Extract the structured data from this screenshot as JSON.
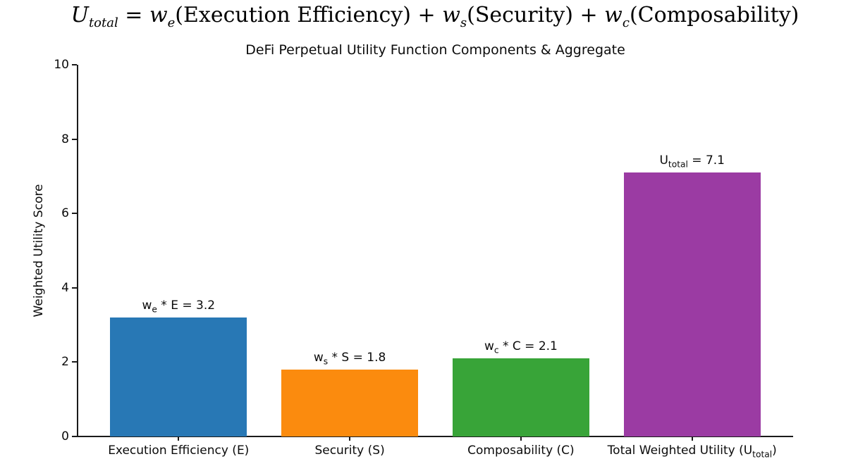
{
  "figure": {
    "background": "#ffffff",
    "text_color": "#111111"
  },
  "formula": {
    "plain": "U_total = w_e(Execution Efficiency) + w_s(Security) + w_c(Composability)",
    "segments": [
      {
        "t": "U",
        "i": true
      },
      {
        "t": "total",
        "i": true,
        "s": true
      },
      {
        "t": " = "
      },
      {
        "t": "w",
        "i": true
      },
      {
        "t": "e",
        "i": true,
        "s": true
      },
      {
        "t": "(Execution Efficiency) + "
      },
      {
        "t": "w",
        "i": true
      },
      {
        "t": "s",
        "i": true,
        "s": true
      },
      {
        "t": "(Security) + "
      },
      {
        "t": "w",
        "i": true
      },
      {
        "t": "c",
        "i": true,
        "s": true
      },
      {
        "t": "(Composability)"
      }
    ]
  },
  "chart_data": {
    "type": "bar",
    "title": "DeFi Perpetual Utility Function Components & Aggregate",
    "xlabel": "",
    "ylabel": "Weighted Utility Score",
    "ylim": [
      0,
      10
    ],
    "yticks": [
      0,
      2,
      4,
      6,
      8,
      10
    ],
    "grid": false,
    "legend": null,
    "categories": [
      "Execution Efficiency (E)",
      "Security (S)",
      "Composability (C)",
      "Total Weighted Utility (U_total)"
    ],
    "values": [
      3.2,
      1.8,
      2.1,
      7.1
    ],
    "bar_colors": [
      "#2878b5",
      "#fb8b0e",
      "#38a438",
      "#9b3ba3"
    ],
    "bar_value_labels": [
      "w_e * E = 3.2",
      "w_s * S = 1.8",
      "w_c * C = 2.1",
      "U_total = 7.1"
    ],
    "bar_value_labels_rich": [
      [
        {
          "t": "w"
        },
        {
          "t": "e",
          "s": true
        },
        {
          "t": " * E = 3.2"
        }
      ],
      [
        {
          "t": "w"
        },
        {
          "t": "s",
          "s": true
        },
        {
          "t": " * S = 1.8"
        }
      ],
      [
        {
          "t": "w"
        },
        {
          "t": "c",
          "s": true
        },
        {
          "t": " * C = 2.1"
        }
      ],
      [
        {
          "t": "U"
        },
        {
          "t": "total",
          "s": true
        },
        {
          "t": " = 7.1"
        }
      ]
    ],
    "categories_rich": [
      [
        {
          "t": "Execution Efficiency (E)"
        }
      ],
      [
        {
          "t": "Security (S)"
        }
      ],
      [
        {
          "t": "Composability (C)"
        }
      ],
      [
        {
          "t": "Total Weighted Utility (U"
        },
        {
          "t": "total",
          "s": true
        },
        {
          "t": ")"
        }
      ]
    ]
  }
}
